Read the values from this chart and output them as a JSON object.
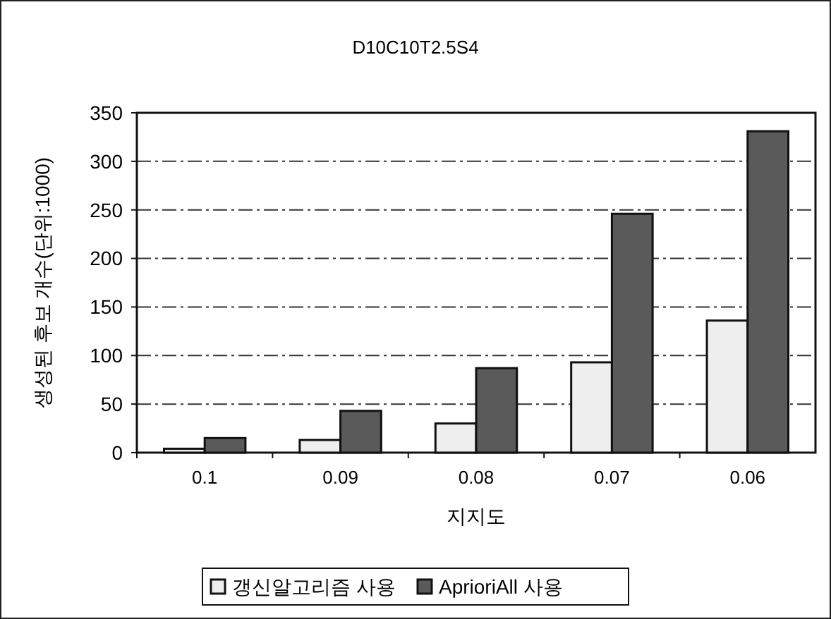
{
  "chart_data": {
    "type": "bar",
    "title": "D10C10T2.5S4",
    "xlabel": "지지도",
    "ylabel": "생성된 후보 개수(단위:1000)",
    "categories": [
      "0.1",
      "0.09",
      "0.08",
      "0.07",
      "0.06"
    ],
    "series": [
      {
        "name": "갱신알고리즘 사용",
        "color": "#eeeeee",
        "values": [
          4,
          13,
          30,
          93,
          136
        ]
      },
      {
        "name": "AprioriAll 사용",
        "color": "#5a5a5a",
        "values": [
          15,
          43,
          87,
          246,
          331
        ]
      }
    ],
    "ylim": [
      0,
      350
    ],
    "yticks": [
      0,
      50,
      100,
      150,
      200,
      250,
      300,
      350
    ],
    "grid": "y",
    "legend": "bottom"
  }
}
